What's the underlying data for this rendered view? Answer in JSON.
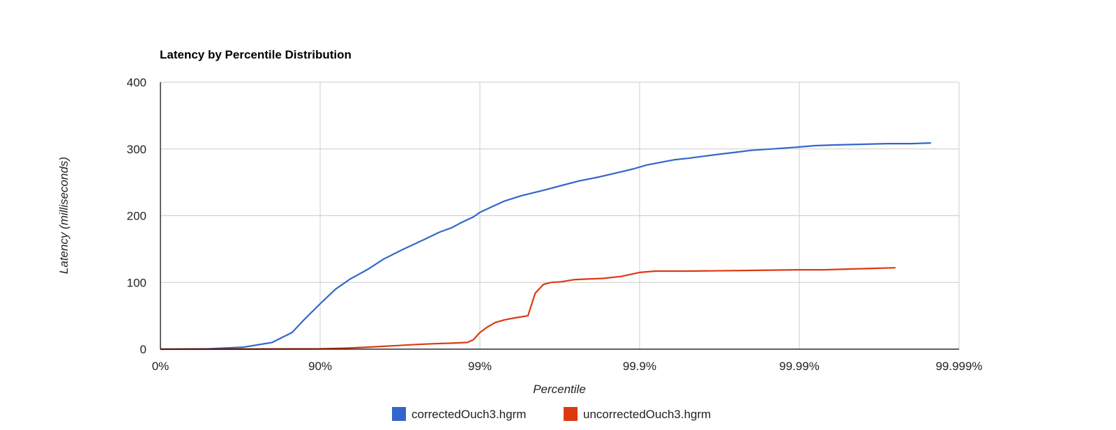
{
  "chart_data": {
    "type": "line",
    "title": "Latency by Percentile Distribution",
    "xlabel": "Percentile",
    "ylabel": "Latency (milliseconds)",
    "x_scale": "log(1/(1-percentile))",
    "x_ticks": [
      "0%",
      "90%",
      "99%",
      "99.9%",
      "99.99%",
      "99.999%"
    ],
    "y_ticks": [
      "0",
      "100",
      "200",
      "300",
      "400"
    ],
    "ylim": [
      0,
      400
    ],
    "grid": true,
    "legend_position": "bottom",
    "series": [
      {
        "name": "correctedOuch3.hgrm",
        "color": "#3366cc",
        "points": [
          [
            0,
            0
          ],
          [
            50,
            0.5
          ],
          [
            70,
            3
          ],
          [
            80,
            10
          ],
          [
            85,
            25
          ],
          [
            87.5,
            45
          ],
          [
            90,
            68
          ],
          [
            92,
            90
          ],
          [
            93.5,
            105
          ],
          [
            95,
            120
          ],
          [
            96,
            135
          ],
          [
            97,
            150
          ],
          [
            97.8,
            165
          ],
          [
            98.2,
            175
          ],
          [
            98.5,
            182
          ],
          [
            98.7,
            190
          ],
          [
            98.9,
            198
          ],
          [
            99,
            205
          ],
          [
            99.15,
            213
          ],
          [
            99.3,
            222
          ],
          [
            99.45,
            230
          ],
          [
            99.6,
            238
          ],
          [
            99.7,
            246
          ],
          [
            99.76,
            252
          ],
          [
            99.82,
            258
          ],
          [
            99.86,
            264
          ],
          [
            99.89,
            270
          ],
          [
            99.91,
            276
          ],
          [
            99.93,
            281
          ],
          [
            99.94,
            284
          ],
          [
            99.95,
            286
          ],
          [
            99.96,
            289
          ],
          [
            99.968,
            292
          ],
          [
            99.975,
            295
          ],
          [
            99.98,
            298
          ],
          [
            99.985,
            300
          ],
          [
            99.99,
            303
          ],
          [
            99.992,
            305
          ],
          [
            99.994,
            306
          ],
          [
            99.996,
            307
          ],
          [
            99.9972,
            308
          ],
          [
            99.998,
            308
          ],
          [
            99.9985,
            309
          ]
        ]
      },
      {
        "name": "uncorrectedOuch3.hgrm",
        "color": "#dc3912",
        "points": [
          [
            0,
            0
          ],
          [
            50,
            0
          ],
          [
            90,
            0.5
          ],
          [
            93,
            1.5
          ],
          [
            95,
            3
          ],
          [
            96.5,
            5
          ],
          [
            97.5,
            7
          ],
          [
            98,
            8
          ],
          [
            98.5,
            9
          ],
          [
            98.8,
            10
          ],
          [
            98.9,
            14
          ],
          [
            99,
            25
          ],
          [
            99.1,
            33
          ],
          [
            99.2,
            40
          ],
          [
            99.3,
            44
          ],
          [
            99.4,
            47
          ],
          [
            99.5,
            50
          ],
          [
            99.55,
            84
          ],
          [
            99.6,
            97
          ],
          [
            99.64,
            100
          ],
          [
            99.69,
            101
          ],
          [
            99.74,
            104
          ],
          [
            99.78,
            105
          ],
          [
            99.83,
            106
          ],
          [
            99.87,
            109
          ],
          [
            99.9,
            115
          ],
          [
            99.92,
            117
          ],
          [
            99.95,
            117
          ],
          [
            99.98,
            118
          ],
          [
            99.99,
            119
          ],
          [
            99.993,
            119
          ],
          [
            99.995,
            120
          ],
          [
            99.9965,
            121
          ],
          [
            99.9975,
            122
          ]
        ]
      }
    ]
  }
}
